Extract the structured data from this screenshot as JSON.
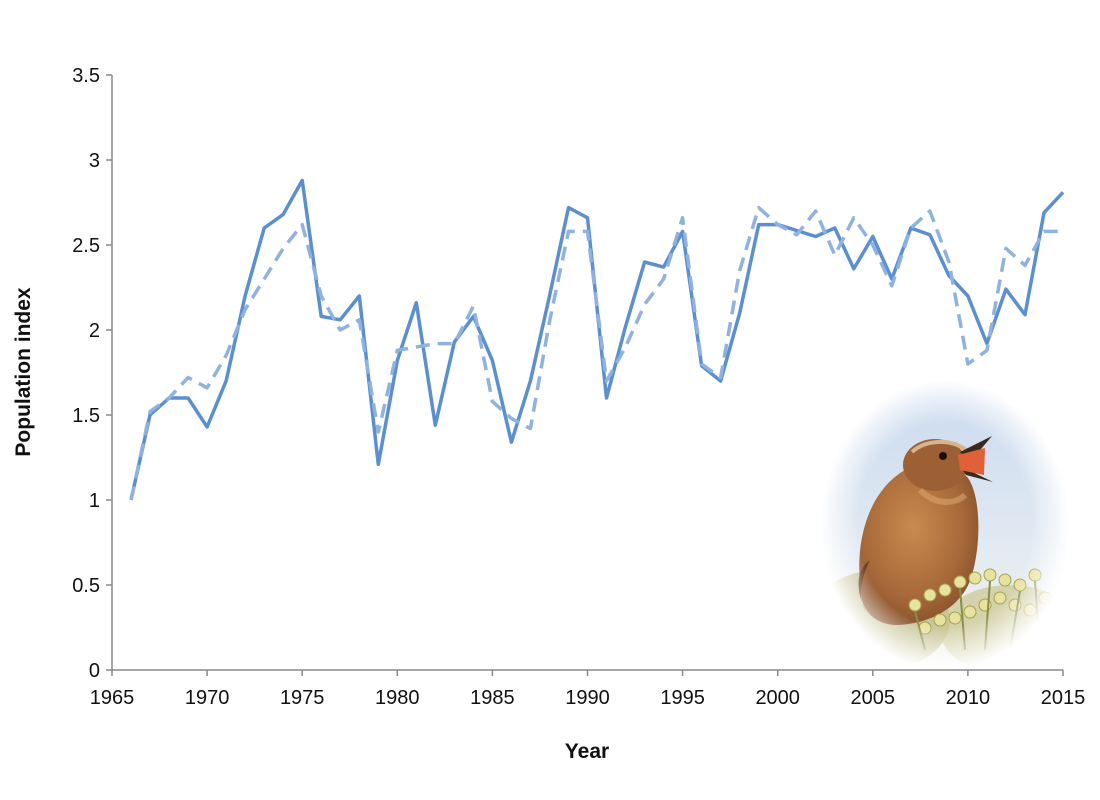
{
  "chart_data": {
    "type": "line",
    "xlabel": "Year",
    "ylabel": "Population index",
    "xlim": [
      1965,
      2015
    ],
    "ylim": [
      0,
      3.5
    ],
    "x_ticks": [
      1965,
      1970,
      1975,
      1980,
      1985,
      1990,
      1995,
      2000,
      2005,
      2010,
      2015
    ],
    "y_ticks": [
      0,
      0.5,
      1,
      1.5,
      2,
      2.5,
      3,
      3.5
    ],
    "y_tick_labels": [
      "0",
      "0.5",
      "1",
      "1.5",
      "2",
      "2.5",
      "3",
      "3.5"
    ],
    "grid": false,
    "legend": "none",
    "series": [
      {
        "style": "solid",
        "color": "#5B8FD0",
        "x": [
          1966,
          1967,
          1968,
          1969,
          1970,
          1971,
          1972,
          1973,
          1974,
          1975,
          1976,
          1977,
          1978,
          1979,
          1980,
          1981,
          1982,
          1983,
          1984,
          1985,
          1986,
          1987,
          1988,
          1989,
          1990,
          1991,
          1992,
          1993,
          1994,
          1995,
          1996,
          1997,
          1998,
          1999,
          2000,
          2002,
          2003,
          2004,
          2005,
          2006,
          2007,
          2008,
          2009,
          2010,
          2011,
          2012,
          2013,
          2014,
          2015
        ],
        "values": [
          1.0,
          1.5,
          1.6,
          1.6,
          1.43,
          1.7,
          2.2,
          2.6,
          2.68,
          2.88,
          2.08,
          2.06,
          2.2,
          1.21,
          1.82,
          2.16,
          1.44,
          1.93,
          2.08,
          1.82,
          1.34,
          1.7,
          2.2,
          2.72,
          2.66,
          1.6,
          2.02,
          2.4,
          2.37,
          2.58,
          1.79,
          1.7,
          2.1,
          2.62,
          2.62,
          2.55,
          2.6,
          2.36,
          2.55,
          2.3,
          2.6,
          2.56,
          2.32,
          2.2,
          1.92,
          2.24,
          2.09,
          2.69,
          2.81
        ]
      },
      {
        "style": "dashed",
        "color": "#8FB2E0",
        "x": [
          1966,
          1967,
          1968,
          1969,
          1970,
          1971,
          1972,
          1973,
          1974,
          1975,
          1976,
          1977,
          1978,
          1979,
          1980,
          1981,
          1982,
          1983,
          1984,
          1985,
          1986,
          1987,
          1988,
          1989,
          1990,
          1991,
          1992,
          1993,
          1994,
          1995,
          1996,
          1997,
          1998,
          1999,
          2000,
          2001,
          2002,
          2003,
          2004,
          2005,
          2006,
          2007,
          2008,
          2009,
          2010,
          2011,
          2012,
          2013,
          2014,
          2015
        ],
        "values": [
          1.0,
          1.52,
          1.6,
          1.72,
          1.66,
          1.85,
          2.12,
          2.3,
          2.48,
          2.62,
          2.2,
          2.0,
          2.06,
          1.4,
          1.88,
          1.9,
          1.92,
          1.92,
          2.14,
          1.58,
          1.48,
          1.42,
          2.05,
          2.58,
          2.58,
          1.7,
          1.9,
          2.15,
          2.3,
          2.66,
          1.8,
          1.72,
          2.35,
          2.72,
          2.62,
          2.56,
          2.7,
          2.44,
          2.66,
          2.5,
          2.26,
          2.6,
          2.7,
          2.4,
          1.8,
          1.88,
          2.48,
          2.38,
          2.58,
          2.58
        ]
      }
    ]
  },
  "photo": {
    "subject": "wren-bird-photo"
  }
}
